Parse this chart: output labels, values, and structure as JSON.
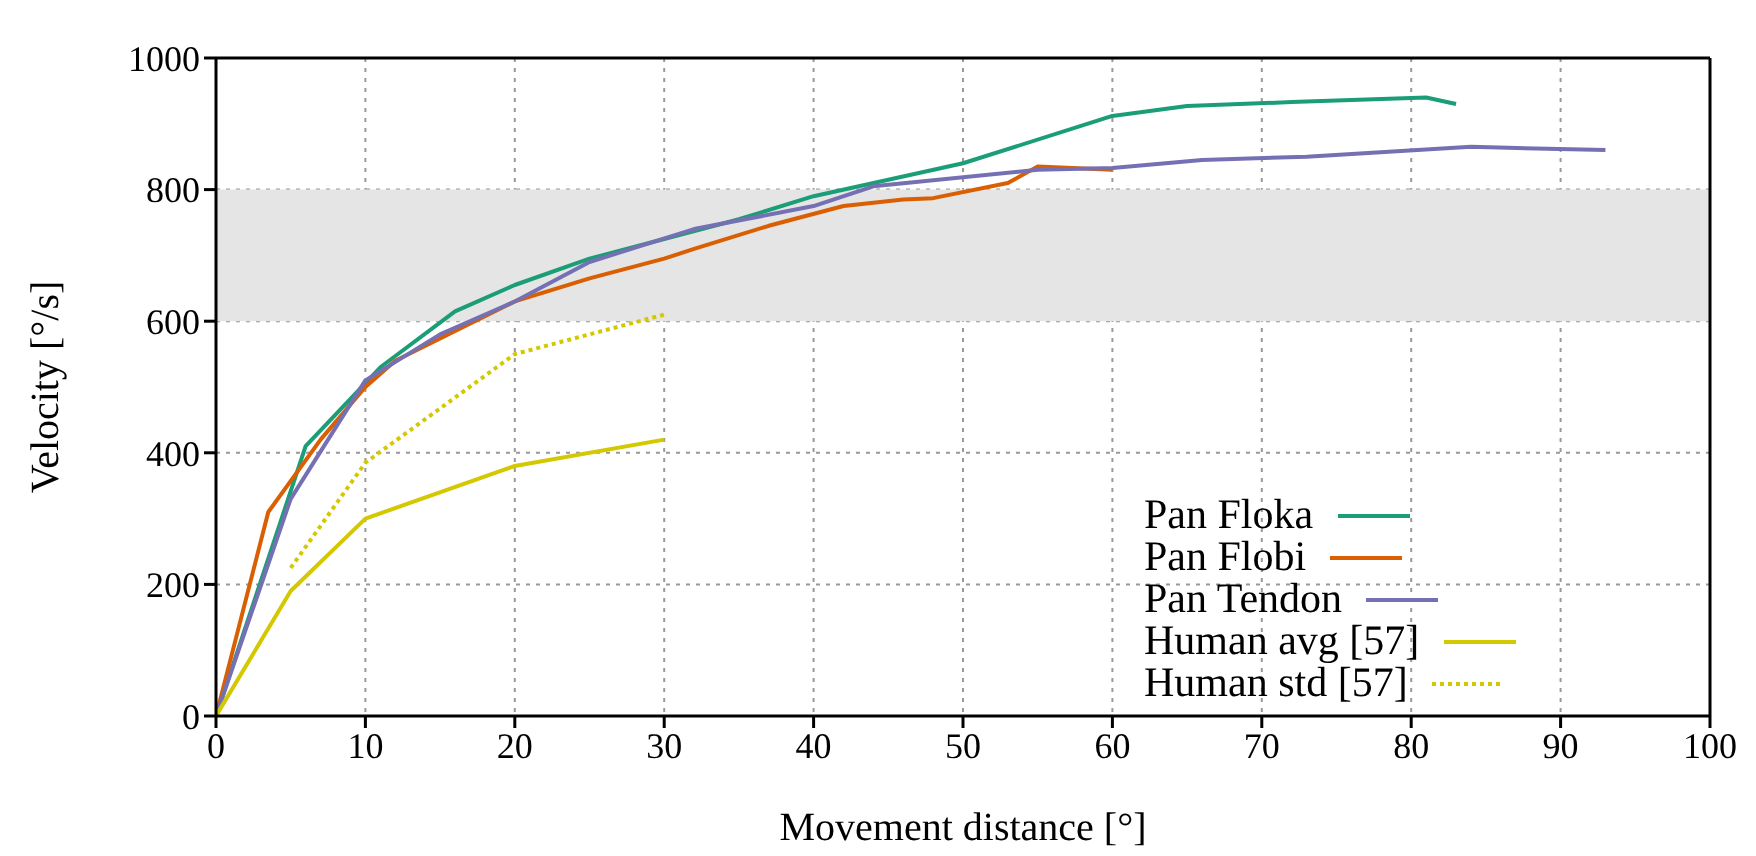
{
  "chart_data": {
    "type": "line",
    "xlabel": "Movement distance [°]",
    "ylabel": "Velocity [°/s]",
    "xlim": [
      0,
      100
    ],
    "xticks": [
      0,
      10,
      20,
      30,
      40,
      50,
      60,
      70,
      80,
      90,
      100
    ],
    "ylim": [
      0,
      1000
    ],
    "yticks": [
      0,
      200,
      400,
      600,
      800,
      1000
    ],
    "grid": true,
    "legend": "bottom right",
    "bands": [
      {
        "axis": "y",
        "from": 600,
        "to": 800,
        "color": "#e5e5e5"
      }
    ],
    "series": [
      {
        "name": "Pan Floka",
        "color": "#1b9e77",
        "x": [
          0,
          6,
          11,
          16,
          20,
          25,
          30,
          35,
          40,
          50,
          60,
          65,
          72,
          81,
          83
        ],
        "values": [
          0,
          410,
          530,
          615,
          655,
          695,
          725,
          755,
          790,
          840,
          912,
          927,
          933,
          940,
          930
        ]
      },
      {
        "name": "Pan Flobi",
        "color": "#d95f02",
        "x": [
          0,
          3.5,
          7,
          10,
          12,
          20,
          25,
          30,
          32,
          37,
          42,
          46,
          48,
          53,
          55,
          60
        ],
        "values": [
          0,
          310,
          420,
          500,
          540,
          630,
          665,
          695,
          710,
          745,
          775,
          785,
          787,
          810,
          835,
          830
        ]
      },
      {
        "name": "Pan Tendon",
        "color": "#7570b3",
        "x": [
          0,
          5,
          10,
          15,
          20,
          25,
          32,
          40,
          44,
          55,
          60,
          66,
          73,
          84,
          93
        ],
        "values": [
          0,
          330,
          510,
          580,
          630,
          690,
          740,
          775,
          805,
          830,
          833,
          845,
          850,
          865,
          860
        ]
      },
      {
        "name": "Human avg [57]",
        "color": "#d4c800",
        "x": [
          0,
          5,
          10,
          20,
          30
        ],
        "values": [
          0,
          190,
          300,
          380,
          420
        ]
      },
      {
        "name": "Human std [57]",
        "color": "#d4c800",
        "line_style": "dotted",
        "x": [
          5,
          10,
          20,
          30
        ],
        "values": [
          225,
          385,
          550,
          610
        ]
      }
    ]
  }
}
